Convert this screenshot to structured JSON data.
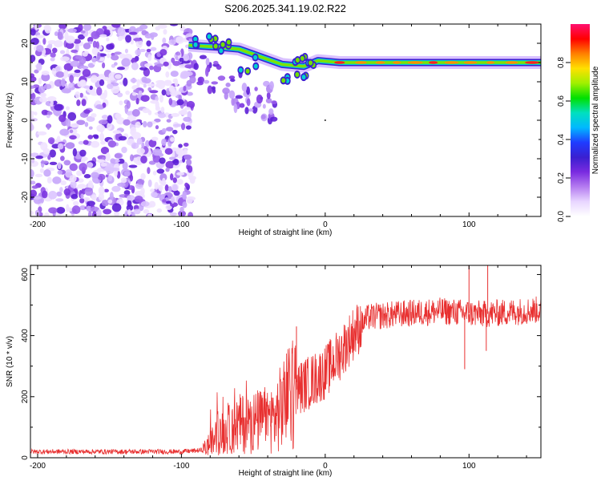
{
  "title": "S206.2025.341.19.02.R22",
  "chart_data": [
    {
      "type": "heatmap",
      "name": "spectrogram",
      "xlabel": "Height of straight line (km)",
      "ylabel": "Frequency (Hz)",
      "xlim": [
        -205,
        150
      ],
      "ylim": [
        -25,
        25
      ],
      "xticks": [
        -200,
        -100,
        0,
        100
      ],
      "yticks": [
        -20,
        -10,
        0,
        10,
        20
      ],
      "colorbar": {
        "label": "Normalized spectral amplitude",
        "range": [
          0.0,
          1.0
        ],
        "ticks": [
          "0.0",
          "0.2",
          "0.4",
          "0.6",
          "0.8"
        ],
        "tick_values": [
          0.0,
          0.2,
          0.4,
          0.6,
          0.8
        ],
        "colors": [
          "#ffffff",
          "#e8d6ff",
          "#b57cf0",
          "#7a2be0",
          "#3a1fd0",
          "#1f3cff",
          "#00b8ff",
          "#00e0c0",
          "#00e000",
          "#a0f000",
          "#ffe000",
          "#ff8000",
          "#ff0000",
          "#ff1070"
        ]
      },
      "noise_region": [
        -205,
        -92
      ],
      "tone_line": [
        {
          "x": -95,
          "freq": 19.5
        },
        {
          "x": -75,
          "freq": 19.0
        },
        {
          "x": -60,
          "freq": 18.5
        },
        {
          "x": -45,
          "freq": 16.5
        },
        {
          "x": -30,
          "freq": 14.5
        },
        {
          "x": -15,
          "freq": 14.0
        },
        {
          "x": -5,
          "freq": 15.5
        },
        {
          "x": 10,
          "freq": 15.0
        },
        {
          "x": 150,
          "freq": 15.0
        }
      ]
    },
    {
      "type": "line",
      "name": "snr",
      "xlabel": "Height of straight line (km)",
      "ylabel": "SNR (10 * v/v)",
      "xlim": [
        -205,
        150
      ],
      "ylim": [
        0,
        630
      ],
      "xticks": [
        -200,
        -100,
        0,
        100
      ],
      "yticks": [
        0,
        200,
        400,
        600
      ],
      "color": "#e83030",
      "trend": [
        {
          "x": -205,
          "y": 20
        },
        {
          "x": -100,
          "y": 20
        },
        {
          "x": -85,
          "y": 25
        },
        {
          "x": -75,
          "y": 70
        },
        {
          "x": -60,
          "y": 110
        },
        {
          "x": -45,
          "y": 120
        },
        {
          "x": -35,
          "y": 130
        },
        {
          "x": -25,
          "y": 210
        },
        {
          "x": -10,
          "y": 250
        },
        {
          "x": 0,
          "y": 280
        },
        {
          "x": 10,
          "y": 340
        },
        {
          "x": 20,
          "y": 410
        },
        {
          "x": 30,
          "y": 460
        },
        {
          "x": 50,
          "y": 470
        },
        {
          "x": 80,
          "y": 480
        },
        {
          "x": 110,
          "y": 470
        },
        {
          "x": 150,
          "y": 485
        }
      ],
      "spikes": [
        {
          "x": -20,
          "y": 430
        },
        {
          "x": 97,
          "y": 290
        },
        {
          "x": 100,
          "y": 630
        },
        {
          "x": 113,
          "y": 630
        },
        {
          "x": 112,
          "y": 350
        }
      ]
    }
  ]
}
